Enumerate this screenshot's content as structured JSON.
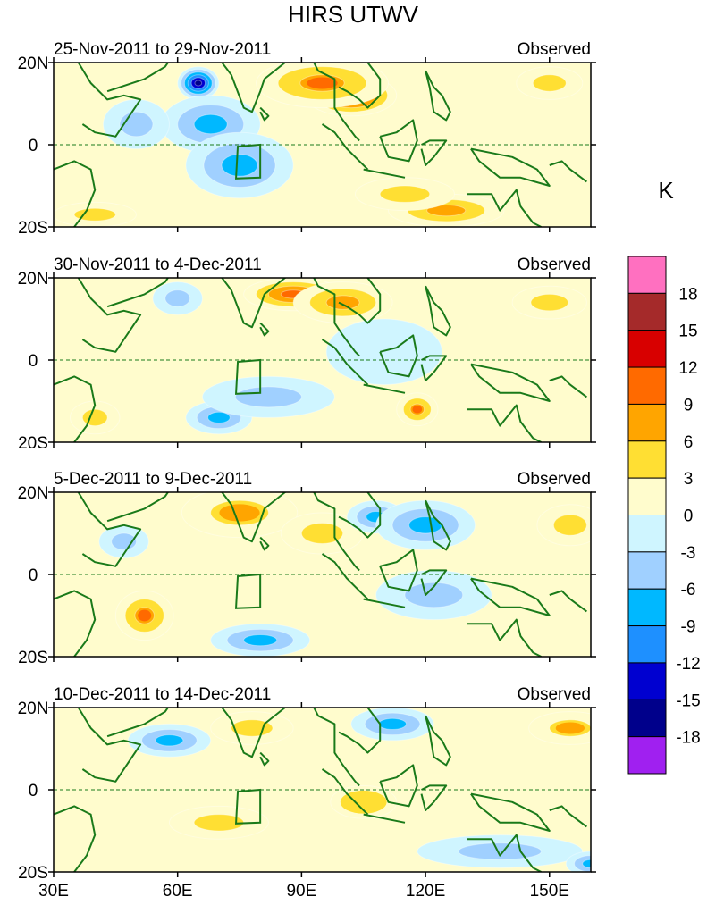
{
  "chart_data": {
    "type": "heatmap",
    "title": "HIRS UTWV",
    "variable_units": "K",
    "x_ticks": [
      "30E",
      "60E",
      "90E",
      "120E",
      "150E"
    ],
    "x_tick_values": [
      30,
      60,
      90,
      120,
      150
    ],
    "x_range": [
      30,
      160
    ],
    "y_ticks": [
      "20N",
      "0",
      "20S"
    ],
    "y_tick_values": [
      20,
      0,
      -20
    ],
    "y_range": [
      -20,
      20
    ],
    "colorbar": {
      "levels": [
        18,
        15,
        12,
        9,
        6,
        3,
        0,
        -3,
        -6,
        -9,
        -12,
        -15,
        -18
      ],
      "labels": [
        "18",
        "15",
        "12",
        "9",
        "6",
        "3",
        "0",
        "-3",
        "-6",
        "-9",
        "-12",
        "-15",
        "-18"
      ],
      "colors": [
        "#ff70c0",
        "#a52a2a",
        "#d80000",
        "#ff6a00",
        "#ffa500",
        "#ffdf33",
        "#fffccd",
        "#cff5ff",
        "#a0d0ff",
        "#00b8ff",
        "#1e90ff",
        "#0000d0",
        "#00008b",
        "#a020f0"
      ]
    },
    "box_region": {
      "lon": [
        75,
        80
      ],
      "lat": [
        -8,
        0
      ]
    },
    "panels": [
      {
        "date_label": "25-Nov-2011 to 29-Nov-2011",
        "tag": "Observed",
        "anomalies": [
          {
            "lon": 102,
            "lat": 12,
            "value": 14,
            "spread": [
              11,
              5
            ]
          },
          {
            "lon": 95,
            "lat": 15,
            "value": 9,
            "spread": [
              16,
              6
            ]
          },
          {
            "lon": 125,
            "lat": -16,
            "value": 8,
            "spread": [
              14,
              4
            ]
          },
          {
            "lon": 115,
            "lat": -12,
            "value": 5,
            "spread": [
              12,
              4
            ]
          },
          {
            "lon": 150,
            "lat": 15,
            "value": 4,
            "spread": [
              8,
              4
            ]
          },
          {
            "lon": 40,
            "lat": -17,
            "value": 4,
            "spread": [
              10,
              3
            ]
          },
          {
            "lon": 65,
            "lat": 15,
            "value": -17,
            "spread": [
              5,
              4
            ]
          },
          {
            "lon": 68,
            "lat": 5,
            "value": -9,
            "spread": [
              12,
              7
            ]
          },
          {
            "lon": 75,
            "lat": -5,
            "value": -7,
            "spread": [
              13,
              8
            ]
          },
          {
            "lon": 50,
            "lat": 5,
            "value": -5,
            "spread": [
              8,
              6
            ]
          }
        ]
      },
      {
        "date_label": "30-Nov-2011 to 4-Dec-2011",
        "tag": "Observed",
        "anomalies": [
          {
            "lon": 88,
            "lat": 16,
            "value": 10,
            "spread": [
              12,
              4
            ]
          },
          {
            "lon": 100,
            "lat": 14,
            "value": 7,
            "spread": [
              12,
              5
            ]
          },
          {
            "lon": 118,
            "lat": -12,
            "value": 9,
            "spread": [
              5,
              4
            ]
          },
          {
            "lon": 150,
            "lat": 14,
            "value": 4,
            "spread": [
              9,
              4
            ]
          },
          {
            "lon": 40,
            "lat": -14,
            "value": 4,
            "spread": [
              6,
              4
            ]
          },
          {
            "lon": 70,
            "lat": -14,
            "value": -9,
            "spread": [
              8,
              4
            ]
          },
          {
            "lon": 82,
            "lat": -9,
            "value": -5,
            "spread": [
              16,
              5
            ]
          },
          {
            "lon": 60,
            "lat": 15,
            "value": -5,
            "spread": [
              6,
              4
            ]
          },
          {
            "lon": 110,
            "lat": 2,
            "value": -3,
            "spread": [
              14,
              8
            ]
          }
        ]
      },
      {
        "date_label": "5-Dec-2011 to 9-Dec-2011",
        "tag": "Observed",
        "anomalies": [
          {
            "lon": 52,
            "lat": -10,
            "value": 9,
            "spread": [
              7,
              6
            ]
          },
          {
            "lon": 75,
            "lat": 15,
            "value": 6,
            "spread": [
              14,
              6
            ]
          },
          {
            "lon": 95,
            "lat": 10,
            "value": 4,
            "spread": [
              10,
              5
            ]
          },
          {
            "lon": 155,
            "lat": 12,
            "value": 4,
            "spread": [
              8,
              5
            ]
          },
          {
            "lon": 108,
            "lat": 14,
            "value": -9,
            "spread": [
              7,
              4
            ]
          },
          {
            "lon": 120,
            "lat": 12,
            "value": -7,
            "spread": [
              12,
              6
            ]
          },
          {
            "lon": 122,
            "lat": -5,
            "value": -5,
            "spread": [
              14,
              6
            ]
          },
          {
            "lon": 47,
            "lat": 8,
            "value": -5,
            "spread": [
              6,
              4
            ]
          },
          {
            "lon": 80,
            "lat": -16,
            "value": -7,
            "spread": [
              12,
              4
            ]
          }
        ]
      },
      {
        "date_label": "10-Dec-2011 to 14-Dec-2011",
        "tag": "Observed",
        "anomalies": [
          {
            "lon": 58,
            "lat": 12,
            "value": -9,
            "spread": [
              10,
              4
            ]
          },
          {
            "lon": 112,
            "lat": 16,
            "value": -7,
            "spread": [
              10,
              4
            ]
          },
          {
            "lon": 138,
            "lat": -15,
            "value": -6,
            "spread": [
              20,
              4
            ]
          },
          {
            "lon": 160,
            "lat": -18,
            "value": -9,
            "spread": [
              6,
              3
            ]
          },
          {
            "lon": 78,
            "lat": 15,
            "value": 5,
            "spread": [
              10,
              4
            ]
          },
          {
            "lon": 155,
            "lat": 15,
            "value": 6,
            "spread": [
              10,
              4
            ]
          },
          {
            "lon": 70,
            "lat": -8,
            "value": 4,
            "spread": [
              12,
              4
            ]
          },
          {
            "lon": 105,
            "lat": -3,
            "value": 3,
            "spread": [
              8,
              4
            ]
          }
        ]
      }
    ]
  }
}
